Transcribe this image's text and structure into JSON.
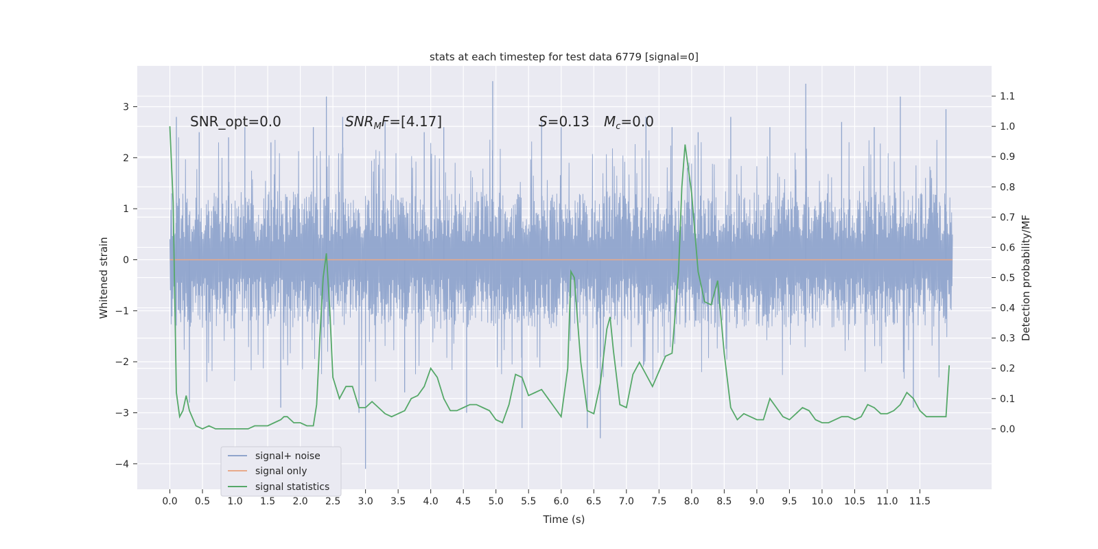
{
  "chart_data": {
    "type": "line",
    "title": "stats at each timestep for test data 6779 [signal=0]",
    "xlabel": "Time (s)",
    "ylabel_left": "Whitened strain",
    "ylabel_right": "Detection probability/MF",
    "xlim": [
      -0.5,
      12.6
    ],
    "ylim_left": [
      -4.5,
      3.8
    ],
    "ylim_right": [
      -0.2,
      1.2
    ],
    "x_ticks": [
      0.0,
      0.5,
      1.0,
      1.5,
      2.0,
      2.5,
      3.0,
      3.5,
      4.0,
      4.5,
      5.0,
      5.5,
      6.0,
      6.5,
      7.0,
      7.5,
      8.0,
      8.5,
      9.0,
      9.5,
      10.0,
      10.5,
      11.0,
      11.5
    ],
    "x_tick_labels": [
      "0.0",
      "0.5",
      "1.0",
      "1.5",
      "2.0",
      "2.5",
      "3.0",
      "3.5",
      "4.0",
      "4.5",
      "5.0",
      "5.5",
      "6.0",
      "6.5",
      "7.0",
      "7.5",
      "8.0",
      "8.5",
      "9.0",
      "9.5",
      "10.0",
      "10.5",
      "11.0",
      "11.5"
    ],
    "y_left_ticks": [
      3,
      2,
      1,
      0,
      -1,
      -2,
      -3,
      -4
    ],
    "y_left_tick_labels": [
      "3",
      "2",
      "1",
      "0",
      "−1",
      "−2",
      "−3",
      "−4"
    ],
    "y_right_ticks": [
      1.1,
      1.0,
      0.9,
      0.8,
      0.7,
      0.6,
      0.5,
      0.4,
      0.3,
      0.2,
      0.1,
      0.0
    ],
    "y_right_tick_labels": [
      "1.1",
      "1.0",
      "0.9",
      "0.8",
      "0.7",
      "0.6",
      "0.5",
      "0.4",
      "0.3",
      "0.2",
      "0.1",
      "0.0"
    ],
    "grid": true,
    "legend_position": "lower-left",
    "annotations": [
      {
        "text": "SNR_opt=0.0",
        "x": 0.2,
        "y": 2.75
      },
      {
        "text": "SNR_MF=[4.17]",
        "x": 2.6,
        "y": 2.75
      },
      {
        "text": "S=0.13",
        "x": 5.6,
        "y": 2.75
      },
      {
        "text": "M_c=0.0",
        "x": 6.6,
        "y": 2.75
      }
    ],
    "series": [
      {
        "name": "signal+ noise",
        "axis": "left",
        "color": "#8fa4cc",
        "style": "noise",
        "x_range": [
          0.0,
          12.0
        ],
        "typical_band": [
          -1.5,
          1.5
        ],
        "spikes": [
          {
            "x": 0.1,
            "y": 2.8
          },
          {
            "x": 0.3,
            "y": -2.8
          },
          {
            "x": 0.45,
            "y": 2.5
          },
          {
            "x": 0.9,
            "y": 2.4
          },
          {
            "x": 1.15,
            "y": 2.6
          },
          {
            "x": 1.55,
            "y": 2.3
          },
          {
            "x": 1.7,
            "y": -2.9
          },
          {
            "x": 2.2,
            "y": 2.6
          },
          {
            "x": 2.4,
            "y": 3.2
          },
          {
            "x": 2.65,
            "y": 2.8
          },
          {
            "x": 2.9,
            "y": -3.0
          },
          {
            "x": 3.0,
            "y": -4.1
          },
          {
            "x": 3.3,
            "y": 2.7
          },
          {
            "x": 3.6,
            "y": -2.6
          },
          {
            "x": 3.9,
            "y": 2.5
          },
          {
            "x": 4.2,
            "y": 2.6
          },
          {
            "x": 4.55,
            "y": -3.0
          },
          {
            "x": 4.95,
            "y": 3.5
          },
          {
            "x": 5.4,
            "y": -3.3
          },
          {
            "x": 5.7,
            "y": 2.7
          },
          {
            "x": 6.0,
            "y": 2.6
          },
          {
            "x": 6.4,
            "y": -3.3
          },
          {
            "x": 6.6,
            "y": -3.5
          },
          {
            "x": 7.3,
            "y": 2.8
          },
          {
            "x": 7.7,
            "y": 2.6
          },
          {
            "x": 8.1,
            "y": 2.5
          },
          {
            "x": 8.6,
            "y": 2.8
          },
          {
            "x": 9.2,
            "y": 2.6
          },
          {
            "x": 9.75,
            "y": 3.45
          },
          {
            "x": 10.3,
            "y": 2.7
          },
          {
            "x": 10.8,
            "y": 2.6
          },
          {
            "x": 11.2,
            "y": 3.2
          },
          {
            "x": 11.4,
            "y": -2.9
          },
          {
            "x": 11.9,
            "y": 2.95
          }
        ]
      },
      {
        "name": "signal only",
        "axis": "left",
        "color": "#e8a98a",
        "x": [
          0.0,
          12.0
        ],
        "y": [
          0.0,
          0.0
        ]
      },
      {
        "name": "signal statistics",
        "axis": "right",
        "color": "#55a868",
        "x": [
          0.0,
          0.05,
          0.1,
          0.15,
          0.2,
          0.25,
          0.3,
          0.4,
          0.5,
          0.6,
          0.7,
          0.8,
          0.9,
          1.0,
          1.1,
          1.2,
          1.3,
          1.4,
          1.5,
          1.6,
          1.7,
          1.75,
          1.8,
          1.9,
          2.0,
          2.1,
          2.2,
          2.25,
          2.3,
          2.35,
          2.4,
          2.45,
          2.5,
          2.6,
          2.7,
          2.8,
          2.9,
          3.0,
          3.1,
          3.2,
          3.3,
          3.4,
          3.5,
          3.6,
          3.7,
          3.8,
          3.9,
          4.0,
          4.1,
          4.2,
          4.3,
          4.4,
          4.5,
          4.6,
          4.7,
          4.8,
          4.9,
          5.0,
          5.1,
          5.2,
          5.3,
          5.4,
          5.5,
          5.6,
          5.7,
          5.8,
          5.9,
          6.0,
          6.1,
          6.15,
          6.2,
          6.3,
          6.4,
          6.5,
          6.6,
          6.7,
          6.75,
          6.8,
          6.9,
          7.0,
          7.1,
          7.2,
          7.3,
          7.4,
          7.5,
          7.6,
          7.7,
          7.8,
          7.85,
          7.9,
          8.0,
          8.1,
          8.2,
          8.3,
          8.4,
          8.5,
          8.6,
          8.7,
          8.8,
          8.9,
          9.0,
          9.1,
          9.2,
          9.3,
          9.4,
          9.5,
          9.6,
          9.7,
          9.8,
          9.9,
          10.0,
          10.1,
          10.2,
          10.3,
          10.4,
          10.5,
          10.6,
          10.7,
          10.8,
          10.9,
          11.0,
          11.1,
          11.2,
          11.3,
          11.4,
          11.5,
          11.6,
          11.7,
          11.8,
          11.9,
          11.95
        ],
        "y": [
          1.0,
          0.75,
          0.12,
          0.04,
          0.06,
          0.11,
          0.06,
          0.01,
          0.0,
          0.01,
          0.0,
          0.0,
          0.0,
          0.0,
          0.0,
          0.0,
          0.01,
          0.01,
          0.01,
          0.02,
          0.03,
          0.04,
          0.04,
          0.02,
          0.02,
          0.01,
          0.01,
          0.08,
          0.3,
          0.5,
          0.58,
          0.4,
          0.17,
          0.1,
          0.14,
          0.14,
          0.07,
          0.07,
          0.09,
          0.07,
          0.05,
          0.04,
          0.05,
          0.06,
          0.1,
          0.11,
          0.14,
          0.2,
          0.17,
          0.1,
          0.06,
          0.06,
          0.07,
          0.08,
          0.08,
          0.07,
          0.06,
          0.03,
          0.02,
          0.08,
          0.18,
          0.17,
          0.11,
          0.12,
          0.13,
          0.1,
          0.07,
          0.04,
          0.2,
          0.52,
          0.5,
          0.22,
          0.06,
          0.05,
          0.15,
          0.33,
          0.37,
          0.26,
          0.08,
          0.07,
          0.18,
          0.22,
          0.18,
          0.14,
          0.19,
          0.24,
          0.25,
          0.52,
          0.8,
          0.94,
          0.78,
          0.52,
          0.42,
          0.41,
          0.49,
          0.25,
          0.07,
          0.03,
          0.05,
          0.04,
          0.03,
          0.03,
          0.1,
          0.07,
          0.04,
          0.03,
          0.05,
          0.07,
          0.06,
          0.03,
          0.02,
          0.02,
          0.03,
          0.04,
          0.04,
          0.03,
          0.04,
          0.08,
          0.07,
          0.05,
          0.05,
          0.06,
          0.08,
          0.12,
          0.1,
          0.06,
          0.04,
          0.04,
          0.04,
          0.04,
          0.21
        ]
      }
    ]
  }
}
